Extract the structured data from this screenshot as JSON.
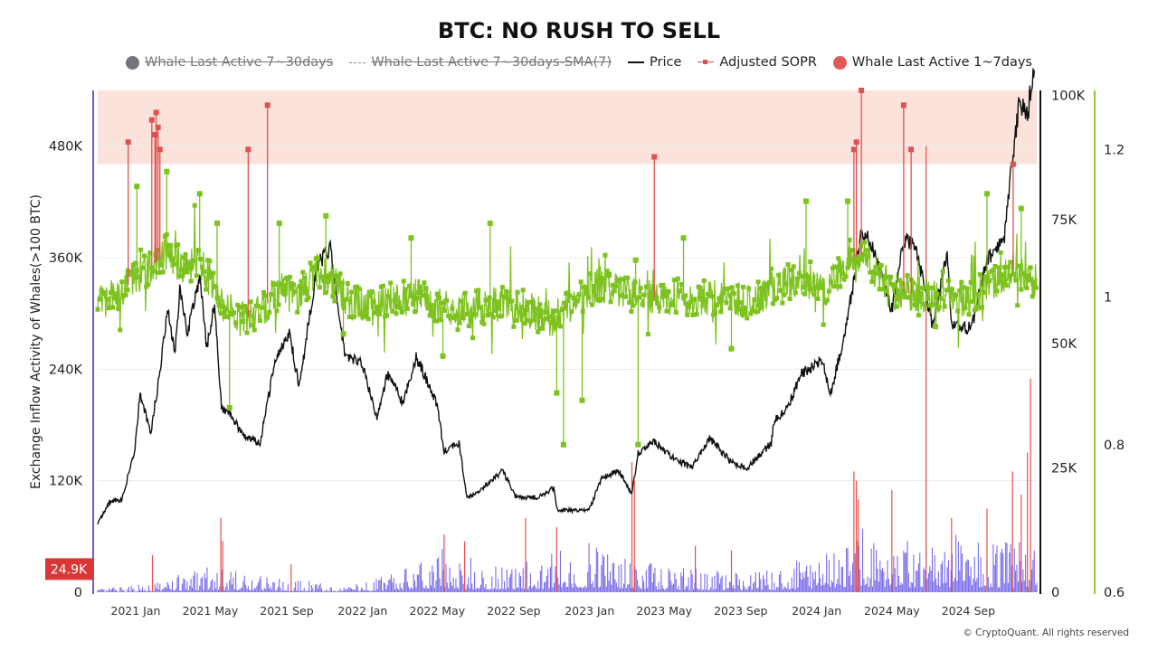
{
  "chart_data": {
    "type": "line",
    "title": "BTC: NO RUSH TO SELL",
    "legend": [
      {
        "name": "Whale Last Active 7~30days",
        "marker": "dot",
        "color": "#75747c",
        "hidden": true
      },
      {
        "name": "Whale Last Active 7~30days-SMA(7)",
        "marker": "dashed-line",
        "color": "#888888",
        "hidden": true
      },
      {
        "name": "Price",
        "marker": "line",
        "color": "#111111",
        "hidden": false
      },
      {
        "name": "Adjusted SOPR",
        "marker": "line-square",
        "color": "#e05050",
        "hidden": false
      },
      {
        "name": "Whale Last Active 1~7days",
        "marker": "dot",
        "color": "#e05a5a",
        "hidden": false
      }
    ],
    "legend_position": "top-center",
    "x_axis": {
      "type": "date",
      "range": [
        "2020-11-01",
        "2024-12-20"
      ],
      "ticks": [
        {
          "label": "2021 Jan",
          "date": "2021-01-01"
        },
        {
          "label": "2021 May",
          "date": "2021-05-01"
        },
        {
          "label": "2021 Sep",
          "date": "2021-09-01"
        },
        {
          "label": "2022 Jan",
          "date": "2022-01-01"
        },
        {
          "label": "2022 May",
          "date": "2022-05-01"
        },
        {
          "label": "2022 Sep",
          "date": "2022-09-01"
        },
        {
          "label": "2023 Jan",
          "date": "2023-01-01"
        },
        {
          "label": "2023 May",
          "date": "2023-05-01"
        },
        {
          "label": "2023 Sep",
          "date": "2023-09-01"
        },
        {
          "label": "2024 Jan",
          "date": "2024-01-01"
        },
        {
          "label": "2024 May",
          "date": "2024-05-01"
        },
        {
          "label": "2024 Sep",
          "date": "2024-09-01"
        }
      ]
    },
    "y_axes": {
      "left": {
        "label": "Exchange Inflow Activity of Whales(>100 BTC)",
        "range": [
          0,
          540000
        ],
        "ticks": [
          {
            "value": 0,
            "label": "0"
          },
          {
            "value": 120000,
            "label": "120K"
          },
          {
            "value": 240000,
            "label": "240K"
          },
          {
            "value": 360000,
            "label": "360K"
          },
          {
            "value": 480000,
            "label": "480K"
          }
        ]
      },
      "price": {
        "label": "",
        "range": [
          0,
          101000
        ],
        "ticks": [
          {
            "value": 0,
            "label": "0"
          },
          {
            "value": 25000,
            "label": "25K"
          },
          {
            "value": 50000,
            "label": "50K"
          },
          {
            "value": 75000,
            "label": "75K"
          },
          {
            "value": 100000,
            "label": "100K"
          }
        ]
      },
      "sopr": {
        "label": "",
        "range": [
          0.6,
          1.28
        ],
        "ticks": [
          {
            "value": 0.6,
            "label": "0.6"
          },
          {
            "value": 0.8,
            "label": "0.8"
          },
          {
            "value": 1,
            "label": "1"
          },
          {
            "value": 1.2,
            "label": "1.2"
          }
        ]
      }
    },
    "current_value_badge": {
      "label": "24.9K",
      "value": 24900,
      "color": "#d93636"
    },
    "highlight_band": {
      "axis": "sopr",
      "from": 1.18,
      "to": 1.28,
      "color": "#fbe3dc"
    },
    "series": [
      {
        "name": "Price",
        "axis": "price",
        "style": "line",
        "color": "#111111",
        "points": [
          [
            "2020-11-01",
            13800
          ],
          [
            "2020-11-20",
            18200
          ],
          [
            "2020-12-10",
            18500
          ],
          [
            "2020-12-31",
            29000
          ],
          [
            "2021-01-08",
            40000
          ],
          [
            "2021-01-25",
            32000
          ],
          [
            "2021-02-10",
            45000
          ],
          [
            "2021-02-21",
            57000
          ],
          [
            "2021-03-05",
            48000
          ],
          [
            "2021-03-13",
            61000
          ],
          [
            "2021-03-25",
            52000
          ],
          [
            "2021-04-14",
            63500
          ],
          [
            "2021-04-25",
            49000
          ],
          [
            "2021-05-08",
            58000
          ],
          [
            "2021-05-19",
            37000
          ],
          [
            "2021-05-31",
            36500
          ],
          [
            "2021-06-22",
            31500
          ],
          [
            "2021-07-20",
            30000
          ],
          [
            "2021-08-14",
            47000
          ],
          [
            "2021-09-06",
            52000
          ],
          [
            "2021-09-21",
            41000
          ],
          [
            "2021-10-20",
            66000
          ],
          [
            "2021-11-10",
            69000
          ],
          [
            "2021-12-04",
            47000
          ],
          [
            "2021-12-31",
            46300
          ],
          [
            "2022-01-24",
            35000
          ],
          [
            "2022-02-10",
            44000
          ],
          [
            "2022-03-07",
            38000
          ],
          [
            "2022-03-28",
            47500
          ],
          [
            "2022-04-30",
            38000
          ],
          [
            "2022-05-12",
            28500
          ],
          [
            "2022-06-05",
            30000
          ],
          [
            "2022-06-18",
            19000
          ],
          [
            "2022-07-10",
            20500
          ],
          [
            "2022-08-14",
            24500
          ],
          [
            "2022-09-06",
            19000
          ],
          [
            "2022-10-10",
            19100
          ],
          [
            "2022-11-05",
            21000
          ],
          [
            "2022-11-10",
            16500
          ],
          [
            "2022-12-31",
            16500
          ],
          [
            "2023-01-21",
            23000
          ],
          [
            "2023-02-16",
            24500
          ],
          [
            "2023-03-10",
            20000
          ],
          [
            "2023-03-20",
            28000
          ],
          [
            "2023-04-14",
            30500
          ],
          [
            "2023-05-15",
            27000
          ],
          [
            "2023-06-15",
            25000
          ],
          [
            "2023-07-13",
            31000
          ],
          [
            "2023-08-18",
            26000
          ],
          [
            "2023-09-11",
            25000
          ],
          [
            "2023-10-20",
            30000
          ],
          [
            "2023-10-24",
            34500
          ],
          [
            "2023-11-15",
            37000
          ],
          [
            "2023-12-08",
            44000
          ],
          [
            "2024-01-11",
            46500
          ],
          [
            "2024-01-23",
            39500
          ],
          [
            "2024-02-15",
            52000
          ],
          [
            "2024-02-29",
            62000
          ],
          [
            "2024-03-14",
            73000
          ],
          [
            "2024-04-01",
            69000
          ],
          [
            "2024-05-01",
            57000
          ],
          [
            "2024-05-21",
            71000
          ],
          [
            "2024-06-07",
            70000
          ],
          [
            "2024-07-05",
            54000
          ],
          [
            "2024-07-29",
            68000
          ],
          [
            "2024-08-05",
            54000
          ],
          [
            "2024-09-06",
            53000
          ],
          [
            "2024-09-28",
            66000
          ],
          [
            "2024-10-29",
            72000
          ],
          [
            "2024-11-13",
            90000
          ],
          [
            "2024-11-22",
            98500
          ],
          [
            "2024-12-05",
            96000
          ],
          [
            "2024-12-16",
            106000
          ]
        ]
      },
      {
        "name": "Adjusted SOPR",
        "axis": "sopr",
        "style": "line-square",
        "color": "#7dc21e",
        "highlight_color": "#e05050",
        "baseline": 1.0,
        "baseline_points": [
          [
            "2020-11-01",
            0.99
          ],
          [
            "2020-12-10",
            1.01
          ],
          [
            "2021-01-10",
            1.03
          ],
          [
            "2021-02-20",
            1.06
          ],
          [
            "2021-03-20",
            1.04
          ],
          [
            "2021-04-15",
            1.05
          ],
          [
            "2021-05-20",
            0.99
          ],
          [
            "2021-06-20",
            0.97
          ],
          [
            "2021-07-20",
            0.98
          ],
          [
            "2021-08-20",
            1.01
          ],
          [
            "2021-09-20",
            1.0
          ],
          [
            "2021-10-20",
            1.04
          ],
          [
            "2021-11-15",
            1.02
          ],
          [
            "2021-12-15",
            0.99
          ],
          [
            "2022-02-01",
            0.995
          ],
          [
            "2022-04-01",
            1.0
          ],
          [
            "2022-06-01",
            0.98
          ],
          [
            "2022-08-01",
            0.99
          ],
          [
            "2022-09-01",
            0.99
          ],
          [
            "2022-11-01",
            0.97
          ],
          [
            "2023-01-15",
            1.02
          ],
          [
            "2023-03-15",
            1.0
          ],
          [
            "2023-05-15",
            1.0
          ],
          [
            "2023-07-15",
            1.0
          ],
          [
            "2023-09-15",
            0.995
          ],
          [
            "2023-11-15",
            1.02
          ],
          [
            "2024-01-15",
            1.01
          ],
          [
            "2024-03-10",
            1.06
          ],
          [
            "2024-05-01",
            1.01
          ],
          [
            "2024-07-01",
            1.0
          ],
          [
            "2024-09-01",
            0.995
          ],
          [
            "2024-11-15",
            1.04
          ],
          [
            "2024-12-16",
            1.02
          ]
        ],
        "spikes": [
          [
            "2020-12-20",
            1.21
          ],
          [
            "2021-01-03",
            1.15
          ],
          [
            "2021-01-27",
            1.24
          ],
          [
            "2021-02-01",
            1.22
          ],
          [
            "2021-02-03",
            1.25
          ],
          [
            "2021-02-06",
            1.23
          ],
          [
            "2021-02-09",
            1.2
          ],
          [
            "2021-02-20",
            1.17
          ],
          [
            "2021-04-14",
            1.14
          ],
          [
            "2021-05-12",
            1.1
          ],
          [
            "2021-06-01",
            0.85
          ],
          [
            "2021-07-01",
            1.2
          ],
          [
            "2021-08-01",
            1.26
          ],
          [
            "2021-08-20",
            1.1
          ],
          [
            "2021-11-03",
            1.11
          ],
          [
            "2021-12-01",
            0.95
          ],
          [
            "2022-03-20",
            1.08
          ],
          [
            "2022-05-10",
            0.92
          ],
          [
            "2022-07-25",
            1.1
          ],
          [
            "2022-11-09",
            0.87
          ],
          [
            "2022-11-20",
            0.8
          ],
          [
            "2022-12-20",
            0.86
          ],
          [
            "2023-02-01",
            1.03
          ],
          [
            "2023-03-16",
            1.05
          ],
          [
            "2023-03-20",
            0.8
          ],
          [
            "2023-04-15",
            1.19
          ],
          [
            "2023-06-01",
            1.08
          ],
          [
            "2023-08-17",
            0.93
          ],
          [
            "2023-12-15",
            1.13
          ],
          [
            "2024-02-20",
            1.13
          ],
          [
            "2024-03-01",
            1.2
          ],
          [
            "2024-03-05",
            1.21
          ],
          [
            "2024-03-13",
            1.28
          ],
          [
            "2024-05-20",
            1.26
          ],
          [
            "2024-06-01",
            1.2
          ],
          [
            "2024-07-10",
            0.96
          ],
          [
            "2024-10-01",
            1.14
          ],
          [
            "2024-11-12",
            1.18
          ],
          [
            "2024-11-25",
            1.12
          ]
        ]
      },
      {
        "name": "Whale Last Active 1~7days",
        "axis": "left",
        "style": "bar",
        "color": "#6a5ce8",
        "highlight_color": "#e84e4e",
        "level_points": [
          [
            "2020-11-01",
            2000
          ],
          [
            "2021-01-15",
            5000
          ],
          [
            "2021-05-01",
            16000
          ],
          [
            "2021-09-01",
            8000
          ],
          [
            "2022-01-01",
            6000
          ],
          [
            "2022-05-01",
            30000
          ],
          [
            "2022-07-01",
            20000
          ],
          [
            "2022-09-01",
            18000
          ],
          [
            "2022-11-15",
            28000
          ],
          [
            "2023-01-15",
            34000
          ],
          [
            "2023-05-01",
            16000
          ],
          [
            "2023-09-01",
            12000
          ],
          [
            "2024-01-01",
            22000
          ],
          [
            "2024-03-01",
            40000
          ],
          [
            "2024-06-01",
            35000
          ],
          [
            "2024-09-01",
            38000
          ],
          [
            "2024-12-16",
            30000
          ]
        ],
        "spikes": [
          [
            "2021-01-28",
            40000
          ],
          [
            "2021-05-18",
            80000
          ],
          [
            "2021-05-21",
            55000
          ],
          [
            "2021-09-08",
            30000
          ],
          [
            "2022-05-12",
            62000
          ],
          [
            "2022-06-14",
            55000
          ],
          [
            "2022-09-20",
            80000
          ],
          [
            "2022-11-09",
            70000
          ],
          [
            "2023-03-10",
            140000
          ],
          [
            "2023-03-14",
            120000
          ],
          [
            "2023-06-20",
            50000
          ],
          [
            "2023-08-17",
            45000
          ],
          [
            "2024-03-01",
            130000
          ],
          [
            "2024-03-05",
            120000
          ],
          [
            "2024-03-08",
            100000
          ],
          [
            "2024-05-01",
            110000
          ],
          [
            "2024-06-25",
            480000
          ],
          [
            "2024-08-05",
            80000
          ],
          [
            "2024-10-01",
            90000
          ],
          [
            "2024-11-11",
            130000
          ],
          [
            "2024-11-25",
            105000
          ],
          [
            "2024-12-05",
            150000
          ],
          [
            "2024-12-10",
            230000
          ]
        ]
      }
    ]
  },
  "footer": {
    "copyright": "© CryptoQuant. All rights reserved"
  }
}
